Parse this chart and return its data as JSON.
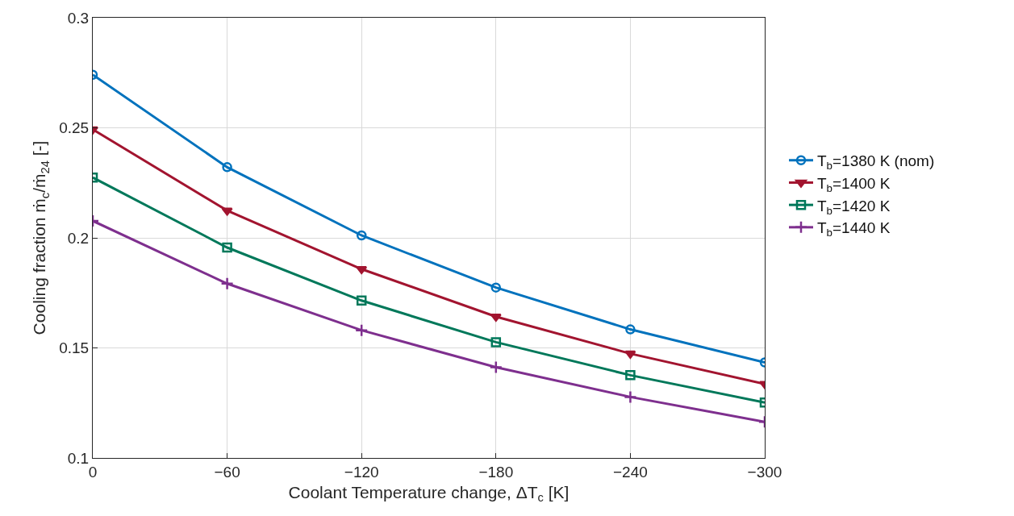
{
  "chart_data": {
    "type": "line",
    "xlabel": "Coolant Temperature change, ΔT$_{c}$ [K]",
    "ylabel": "Cooling fraction ṁ$_{c}$/ṁ$_{24}$ [-]",
    "x": [
      0,
      -60,
      -120,
      -180,
      -240,
      -300
    ],
    "xlim": [
      0,
      -300
    ],
    "xticks": [
      0,
      {
        "value": -60,
        "label": "−60"
      },
      {
        "value": -120,
        "label": "−120"
      },
      {
        "value": -180,
        "label": "−180"
      },
      {
        "value": -240,
        "label": "−240"
      },
      {
        "value": -300,
        "label": "−300"
      }
    ],
    "ylim": [
      0.1,
      0.3
    ],
    "yticks": [
      0.1,
      0.15,
      0.2,
      0.25,
      0.3
    ],
    "grid": true,
    "legend": "right",
    "line_style": "solid",
    "series": [
      {
        "name": "T$_{b}$=1380 K (nom)",
        "color": "#0072bd",
        "marker": "circle",
        "values": [
          0.2741,
          0.2321,
          0.2011,
          0.1774,
          0.1584,
          0.1434
        ]
      },
      {
        "name": "T$_{b}$=1400 K",
        "color": "#a2142f",
        "marker": "triangle",
        "values": [
          0.2493,
          0.2124,
          0.1858,
          0.1642,
          0.1474,
          0.1336
        ]
      },
      {
        "name": "T$_{b}$=1420 K",
        "color": "#00785a",
        "marker": "square",
        "values": [
          0.2274,
          0.1956,
          0.1715,
          0.1526,
          0.1376,
          0.1252
        ]
      },
      {
        "name": "T$_{b}$=1440 K",
        "color": "#7e2f8e",
        "marker": "cross",
        "values": [
          0.2077,
          0.1792,
          0.158,
          0.1412,
          0.1277,
          0.1164
        ]
      }
    ]
  }
}
